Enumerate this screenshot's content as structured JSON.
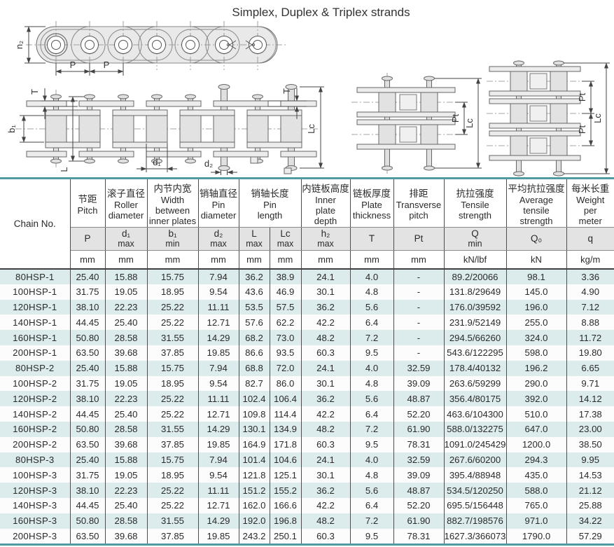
{
  "title": "Simplex, Duplex & Triplex strands",
  "colors": {
    "accent_teal": "#4f9aa3",
    "row_tint": "#dcebeb",
    "header_band": "#e3e3e3"
  },
  "diagrams": {
    "side_view": {
      "h2": "h₂",
      "p_left": "P",
      "p_right": "P"
    },
    "plan_view": {
      "t_left": "T",
      "t_right": "T",
      "b1": "b₁",
      "l": "L",
      "d1": "d₁",
      "d2": "d₂",
      "lc": "Lc"
    },
    "duplex": {
      "pt": "Pt",
      "lc": "Lc"
    },
    "triplex": {
      "pt_upper": "Pt",
      "pt_lower": "Pt",
      "lc": "Lc"
    }
  },
  "table": {
    "chain_no_header": "Chain No.",
    "header_groups": [
      {
        "cn": "节距",
        "en": "Pitch",
        "span": 1
      },
      {
        "cn": "滚子直径",
        "en": "Roller\ndiameter",
        "span": 1
      },
      {
        "cn": "内节内宽",
        "en": "Width\nbetween\ninner plates",
        "span": 1
      },
      {
        "cn": "销轴直径",
        "en": "Pin\ndiameter",
        "span": 1
      },
      {
        "cn": "销轴长度",
        "en": "Pin\nlength",
        "span": 2
      },
      {
        "cn": "内链板高度",
        "en": "Inner\nplate\ndepth",
        "span": 1
      },
      {
        "cn": "链板厚度",
        "en": "Plate\nthickness",
        "span": 1
      },
      {
        "cn": "排距",
        "en": "Transverse\npitch",
        "span": 1
      },
      {
        "cn": "抗拉强度",
        "en": "Tensile\nstrength",
        "span": 1
      },
      {
        "cn": "平均抗拉强度",
        "en": "Average\ntensile\nstrength",
        "span": 1
      },
      {
        "cn": "每米长重",
        "en": "Weight\nper\nmeter",
        "span": 1
      }
    ],
    "symbols": [
      {
        "sym": "P",
        "qual": ""
      },
      {
        "sym": "d₁",
        "qual": "max"
      },
      {
        "sym": "b₁",
        "qual": "min"
      },
      {
        "sym": "d₂",
        "qual": "max"
      },
      {
        "sym": "L",
        "qual": "max"
      },
      {
        "sym": "Lc",
        "qual": "max"
      },
      {
        "sym": "h₂",
        "qual": "max"
      },
      {
        "sym": "T",
        "qual": ""
      },
      {
        "sym": "Pt",
        "qual": ""
      },
      {
        "sym": "Q",
        "qual": "min"
      },
      {
        "sym": "Q₀",
        "qual": ""
      },
      {
        "sym": "q",
        "qual": ""
      }
    ],
    "units": [
      "mm",
      "mm",
      "mm",
      "mm",
      "mm",
      "mm",
      "mm",
      "mm",
      "mm",
      "kN/lbf",
      "kN",
      "kg/m"
    ],
    "rows": [
      [
        "80HSP-1",
        "25.40",
        "15.88",
        "15.75",
        "7.94",
        "36.2",
        "38.9",
        "24.1",
        "4.0",
        "-",
        "89.2/20066",
        "98.1",
        "3.36"
      ],
      [
        "100HSP-1",
        "31.75",
        "19.05",
        "18.95",
        "9.54",
        "43.6",
        "46.9",
        "30.1",
        "4.8",
        "-",
        "131.8/29649",
        "145.0",
        "4.90"
      ],
      [
        "120HSP-1",
        "38.10",
        "22.23",
        "25.22",
        "11.11",
        "53.5",
        "57.5",
        "36.2",
        "5.6",
        "-",
        "176.0/39592",
        "196.0",
        "7.12"
      ],
      [
        "140HSP-1",
        "44.45",
        "25.40",
        "25.22",
        "12.71",
        "57.6",
        "62.2",
        "42.2",
        "6.4",
        "-",
        "231.9/52149",
        "255.0",
        "8.88"
      ],
      [
        "160HSP-1",
        "50.80",
        "28.58",
        "31.55",
        "14.29",
        "68.2",
        "73.0",
        "48.2",
        "7.2",
        "-",
        "294.5/66260",
        "324.0",
        "11.72"
      ],
      [
        "200HSP-1",
        "63.50",
        "39.68",
        "37.85",
        "19.85",
        "86.6",
        "93.5",
        "60.3",
        "9.5",
        "-",
        "543.6/122295",
        "598.0",
        "19.80"
      ],
      [
        "80HSP-2",
        "25.40",
        "15.88",
        "15.75",
        "7.94",
        "68.8",
        "72.0",
        "24.1",
        "4.0",
        "32.59",
        "178.4/40132",
        "196.2",
        "6.65"
      ],
      [
        "100HSP-2",
        "31.75",
        "19.05",
        "18.95",
        "9.54",
        "82.7",
        "86.0",
        "30.1",
        "4.8",
        "39.09",
        "263.6/59299",
        "290.0",
        "9.71"
      ],
      [
        "120HSP-2",
        "38.10",
        "22.23",
        "25.22",
        "11.11",
        "102.4",
        "106.4",
        "36.2",
        "5.6",
        "48.87",
        "356.4/80175",
        "392.0",
        "14.12"
      ],
      [
        "140HSP-2",
        "44.45",
        "25.40",
        "25.22",
        "12.71",
        "109.8",
        "114.4",
        "42.2",
        "6.4",
        "52.20",
        "463.6/104300",
        "510.0",
        "17.38"
      ],
      [
        "160HSP-2",
        "50.80",
        "28.58",
        "31.55",
        "14.29",
        "130.1",
        "134.9",
        "48.2",
        "7.2",
        "61.90",
        "588.0/132275",
        "647.0",
        "23.00"
      ],
      [
        "200HSP-2",
        "63.50",
        "39.68",
        "37.85",
        "19.85",
        "164.9",
        "171.8",
        "60.3",
        "9.5",
        "78.31",
        "1091.0/245429",
        "1200.0",
        "38.50"
      ],
      [
        "80HSP-3",
        "25.40",
        "15.88",
        "15.75",
        "7.94",
        "101.4",
        "104.6",
        "24.1",
        "4.0",
        "32.59",
        "267.6/60200",
        "294.3",
        "9.95"
      ],
      [
        "100HSP-3",
        "31.75",
        "19.05",
        "18.95",
        "9.54",
        "121.8",
        "125.1",
        "30.1",
        "4.8",
        "39.09",
        "395.4/88948",
        "435.0",
        "14.53"
      ],
      [
        "120HSP-3",
        "38.10",
        "22.23",
        "25.22",
        "11.11",
        "151.2",
        "155.2",
        "36.2",
        "5.6",
        "48.87",
        "534.5/120250",
        "588.0",
        "21.12"
      ],
      [
        "140HSP-3",
        "44.45",
        "25.40",
        "25.22",
        "12.71",
        "162.0",
        "166.6",
        "42.2",
        "6.4",
        "52.20",
        "695.5/156448",
        "765.0",
        "25.88"
      ],
      [
        "160HSP-3",
        "50.80",
        "28.58",
        "31.55",
        "14.29",
        "192.0",
        "196.8",
        "48.2",
        "7.2",
        "61.90",
        "882.7/198576",
        "971.0",
        "34.22"
      ],
      [
        "200HSP-3",
        "63.50",
        "39.68",
        "37.85",
        "19.85",
        "243.2",
        "250.1",
        "60.3",
        "9.5",
        "78.31",
        "1627.3/366073",
        "1790.0",
        "57.29"
      ]
    ]
  }
}
